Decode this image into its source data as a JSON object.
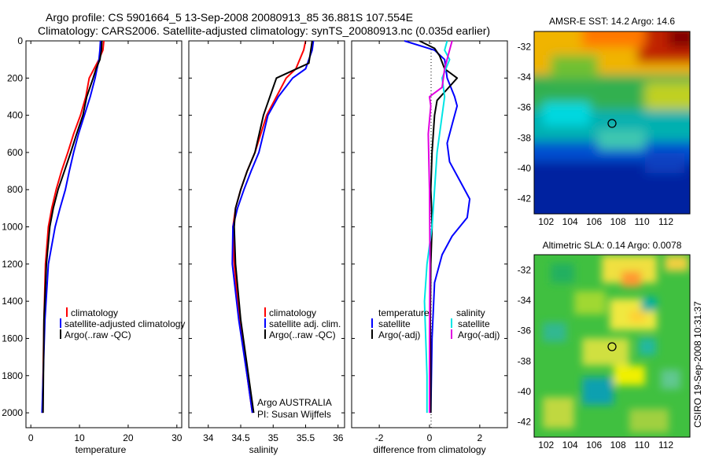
{
  "header": {
    "line1": "Argo profile: CS 5901664_5 13-Sep-2008 20080913_85 36.881S 107.554E",
    "line2": "Climatology: CARS2006. Satellite-adjusted climatology: synTS_20080913.nc (0.035d earlier)"
  },
  "side_label": "CSIRO 19-Sep-2008 10:31:37",
  "colors": {
    "climatology": "#ff0000",
    "satellite": "#0000ff",
    "argo": "#000000",
    "salt_satellite": "#00e5e5",
    "salt_argo": "#e000e0"
  },
  "chart_data": [
    {
      "type": "line",
      "id": "temperature",
      "xlabel": "temperature",
      "ylabel": "",
      "xlim": [
        -1,
        31
      ],
      "ylim": [
        2080,
        0
      ],
      "xticks": [
        0,
        10,
        20,
        30
      ],
      "yticks": [
        0,
        200,
        400,
        600,
        800,
        1000,
        1200,
        1400,
        1600,
        1800,
        2000
      ],
      "legend": [
        "climatology",
        "satellite-adjusted climatology",
        "Argo(..raw -QC)"
      ],
      "series": [
        {
          "name": "climatology",
          "color": "#ff0000",
          "x": [
            15.0,
            14.8,
            14.0,
            13.0,
            12.0,
            11.3,
            10.2,
            8.8,
            7.6,
            6.3,
            5.2,
            4.3,
            3.6,
            3.0,
            2.7,
            2.4
          ],
          "y": [
            0,
            50,
            100,
            150,
            200,
            300,
            400,
            500,
            600,
            700,
            800,
            900,
            1000,
            1200,
            1500,
            2000
          ]
        },
        {
          "name": "satellite-adjusted climatology",
          "color": "#0000ff",
          "x": [
            14.3,
            14.2,
            14.0,
            13.6,
            13.2,
            12.2,
            11.0,
            9.8,
            8.8,
            7.9,
            7.1,
            6.0,
            5.0,
            3.6,
            2.9,
            2.3
          ],
          "y": [
            0,
            50,
            100,
            150,
            200,
            300,
            400,
            500,
            600,
            700,
            800,
            900,
            1000,
            1200,
            1500,
            2000
          ]
        },
        {
          "name": "Argo(..raw -QC)",
          "color": "#000000",
          "x": [
            14.6,
            14.5,
            14.2,
            13.4,
            12.8,
            11.5,
            10.7,
            9.4,
            8.2,
            6.9,
            5.6,
            4.6,
            3.9,
            3.2,
            2.7,
            2.5
          ],
          "y": [
            0,
            50,
            100,
            150,
            200,
            300,
            400,
            500,
            600,
            700,
            800,
            900,
            1000,
            1200,
            1500,
            2000
          ]
        }
      ]
    },
    {
      "type": "line",
      "id": "salinity",
      "xlabel": "salinity",
      "xlim": [
        33.7,
        36.1
      ],
      "ylim": [
        2080,
        0
      ],
      "xticks": [
        34,
        34.5,
        35,
        35.5,
        36
      ],
      "legend": [
        "climatology",
        "satellite adj. clim.",
        "Argo(..raw -QC)"
      ],
      "annotation": [
        "Argo AUSTRALIA",
        "PI: Susan Wijffels"
      ],
      "series": [
        {
          "name": "climatology",
          "color": "#ff0000",
          "x": [
            35.5,
            35.47,
            35.35,
            35.2,
            35.05,
            34.9,
            34.72,
            34.6,
            34.5,
            34.42,
            34.38,
            34.4,
            34.48,
            34.6,
            34.68
          ],
          "y": [
            0,
            50,
            150,
            200,
            300,
            400,
            600,
            700,
            800,
            900,
            1000,
            1200,
            1500,
            1800,
            2000
          ]
        },
        {
          "name": "satellite adj. clim.",
          "color": "#0000ff",
          "x": [
            35.62,
            35.6,
            35.5,
            35.3,
            35.08,
            34.92,
            34.78,
            34.66,
            34.55,
            34.45,
            34.38,
            34.37,
            34.47,
            34.6,
            34.68
          ],
          "y": [
            0,
            50,
            150,
            200,
            300,
            400,
            600,
            700,
            800,
            900,
            1000,
            1200,
            1500,
            1800,
            2000
          ]
        },
        {
          "name": "Argo(..raw -QC)",
          "color": "#000000",
          "x": [
            35.6,
            35.58,
            35.55,
            35.05,
            34.95,
            34.85,
            34.72,
            34.6,
            34.5,
            34.42,
            34.4,
            34.42,
            34.5,
            34.62,
            34.7
          ],
          "y": [
            0,
            50,
            120,
            200,
            300,
            400,
            600,
            700,
            800,
            900,
            1000,
            1200,
            1500,
            1800,
            2000
          ]
        }
      ]
    },
    {
      "type": "line",
      "id": "difference",
      "xlabel": "difference from climatology",
      "xlim": [
        -3.1,
        3.1
      ],
      "ylim": [
        2080,
        0
      ],
      "xticks": [
        -2,
        0,
        2
      ],
      "legend_left_title": "temperature",
      "legend_right_title": "salinity",
      "legend": [
        "satellite",
        "Argo(-adj)",
        "satellite",
        "Argo(-adj)"
      ],
      "series": [
        {
          "name": "temperature satellite",
          "color": "#0000ff",
          "x": [
            -1.0,
            0.2,
            0.6,
            0.7,
            1.0,
            1.1,
            0.9,
            0.7,
            0.8,
            1.2,
            1.6,
            1.5,
            0.9,
            0.5,
            0.2,
            0.1,
            0.05
          ],
          "y": [
            0,
            50,
            100,
            200,
            300,
            350,
            450,
            550,
            650,
            750,
            850,
            950,
            1050,
            1150,
            1300,
            1600,
            2000
          ]
        },
        {
          "name": "temperature Argo(-adj)",
          "color": "#000000",
          "x": [
            -0.4,
            0.2,
            0.4,
            0.6,
            1.1,
            0.7,
            0.3,
            0.2,
            0.1,
            0.05,
            0.08,
            0.1,
            0.05,
            0.03,
            0.05,
            0.05
          ],
          "y": [
            0,
            40,
            80,
            150,
            200,
            260,
            320,
            400,
            600,
            800,
            900,
            1000,
            1200,
            1500,
            1800,
            2000
          ]
        },
        {
          "name": "salinity satellite",
          "color": "#00e5e5",
          "x": [
            0.7,
            0.6,
            0.8,
            0.5,
            0.6,
            0.5,
            0.3,
            0.2,
            0.1,
            -0.1,
            -0.2,
            -0.15,
            -0.1,
            -0.1
          ],
          "y": [
            0,
            50,
            100,
            200,
            300,
            400,
            600,
            800,
            1000,
            1200,
            1400,
            1600,
            1800,
            2000
          ]
        },
        {
          "name": "salinity Argo(-adj)",
          "color": "#e000e0",
          "x": [
            0.9,
            0.8,
            0.6,
            0.5,
            0.0,
            0.05,
            -0.05,
            0.0,
            0.02,
            0.0,
            0.0
          ],
          "y": [
            0,
            50,
            150,
            250,
            300,
            350,
            500,
            800,
            1200,
            1600,
            2000
          ]
        }
      ]
    },
    {
      "type": "heatmap",
      "id": "sst-map",
      "title": "AMSR-E SST: 14.2 Argo: 14.6",
      "xticks": [
        "102",
        "104",
        "106",
        "108",
        "110",
        "112"
      ],
      "yticks": [
        "-32",
        "-34",
        "-36",
        "-38",
        "-40",
        "-42"
      ],
      "lon_range": [
        101,
        114
      ],
      "lat_range": [
        -43,
        -31
      ],
      "marker": {
        "lon": 107.55,
        "lat": -36.9
      }
    },
    {
      "type": "heatmap",
      "id": "sla-map",
      "title": "Altimetric SLA: 0.14 Argo: 0.0078",
      "xticks": [
        "102",
        "104",
        "106",
        "108",
        "110",
        "112"
      ],
      "yticks": [
        "-32",
        "-34",
        "-36",
        "-38",
        "-40",
        "-42"
      ],
      "lon_range": [
        101,
        114
      ],
      "lat_range": [
        -43,
        -31
      ],
      "marker": {
        "lon": 107.55,
        "lat": -36.9
      }
    }
  ]
}
